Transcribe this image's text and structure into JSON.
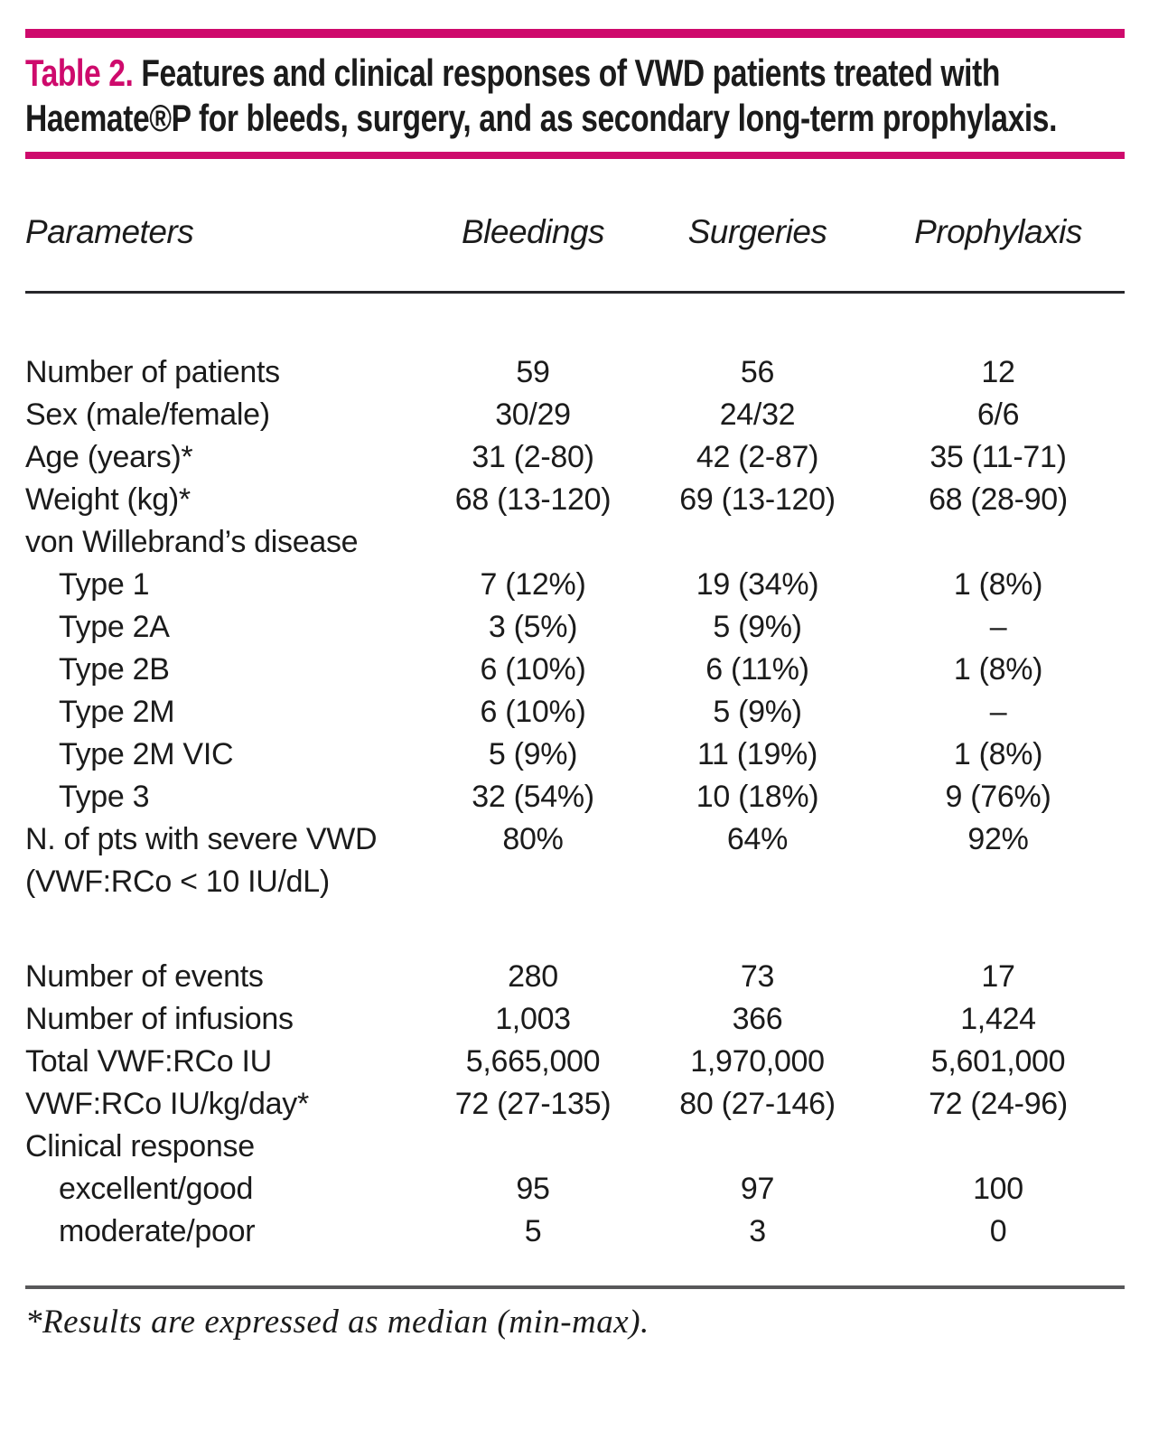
{
  "title": {
    "label": "Table 2.",
    "rest": " Features and clinical responses of VWD patients treated with Haemate®P for bleeds, surgery, and as secondary long-term prophylaxis."
  },
  "colors": {
    "accent": "#ce0a6c",
    "text": "#1b1b1b",
    "header_rule": "#26262a",
    "footnote_rule": "#58585a"
  },
  "table": {
    "columns": [
      "Parameters",
      "Bleedings",
      "Surgeries",
      "Prophylaxis"
    ],
    "rows": [
      {
        "label": "Number of patients",
        "indent": 0,
        "values": [
          "59",
          "56",
          "12"
        ]
      },
      {
        "label": "Sex (male/female)",
        "indent": 0,
        "values": [
          "30/29",
          "24/32",
          "6/6"
        ]
      },
      {
        "label": "Age (years)*",
        "indent": 0,
        "values": [
          "31 (2-80)",
          "42 (2-87)",
          "35 (11-71)"
        ]
      },
      {
        "label": "Weight (kg)*",
        "indent": 0,
        "values": [
          "68 (13-120)",
          "69 (13-120)",
          "68 (28-90)"
        ]
      },
      {
        "label": "von Willebrand’s disease",
        "indent": 0,
        "values": [
          "",
          "",
          ""
        ]
      },
      {
        "label": "Type 1",
        "indent": 1,
        "values": [
          "7 (12%)",
          "19 (34%)",
          "1 (8%)"
        ]
      },
      {
        "label": "Type 2A",
        "indent": 1,
        "values": [
          "3 (5%)",
          "5 (9%)",
          "–"
        ]
      },
      {
        "label": "Type 2B",
        "indent": 1,
        "values": [
          "6 (10%)",
          "6 (11%)",
          "1 (8%)"
        ]
      },
      {
        "label": "Type 2M",
        "indent": 1,
        "values": [
          "6 (10%)",
          "5 (9%)",
          "–"
        ]
      },
      {
        "label": "Type 2M VIC",
        "indent": 1,
        "values": [
          "5 (9%)",
          "11 (19%)",
          "1 (8%)"
        ]
      },
      {
        "label": "Type 3",
        "indent": 1,
        "values": [
          "32 (54%)",
          "10 (18%)",
          "9 (76%)"
        ]
      },
      {
        "label": "N. of pts with severe VWD",
        "indent": 0,
        "values": [
          "80%",
          "64%",
          "92%"
        ]
      },
      {
        "label": "(VWF:RCo < 10 IU/dL)",
        "indent": 0,
        "values": [
          "",
          "",
          ""
        ]
      },
      {
        "label": "",
        "indent": 0,
        "values": [
          "",
          "",
          ""
        ],
        "spacer": true
      },
      {
        "label": "Number of events",
        "indent": 0,
        "values": [
          "280",
          "73",
          "17"
        ]
      },
      {
        "label": "Number of infusions",
        "indent": 0,
        "values": [
          "1,003",
          "366",
          "1,424"
        ]
      },
      {
        "label": "Total VWF:RCo IU",
        "indent": 0,
        "values": [
          "5,665,000",
          "1,970,000",
          "5,601,000"
        ]
      },
      {
        "label": "VWF:RCo IU/kg/day*",
        "indent": 0,
        "values": [
          "72 (27-135)",
          "80 (27-146)",
          "72 (24-96)"
        ]
      },
      {
        "label": "Clinical response",
        "indent": 0,
        "values": [
          "",
          "",
          ""
        ]
      },
      {
        "label": "excellent/good",
        "indent": 1,
        "values": [
          "95",
          "97",
          "100"
        ]
      },
      {
        "label": "moderate/poor",
        "indent": 1,
        "values": [
          "5",
          "3",
          "0"
        ]
      }
    ]
  },
  "footnote": "*Results are expressed as median (min-max)."
}
